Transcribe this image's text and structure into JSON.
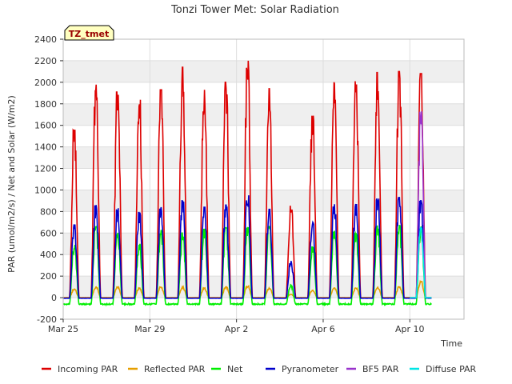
{
  "chart_data": {
    "type": "line",
    "title": "Tonzi Tower Met: Solar Radiation",
    "xlabel": "Time",
    "ylabel": "PAR (umol/m2/s) / Net and Solar (W/m2)",
    "site_label": "TZ_tmet",
    "ylim": [
      -200,
      2400
    ],
    "yticks": [
      -200,
      0,
      200,
      400,
      600,
      800,
      1000,
      1200,
      1400,
      1600,
      1800,
      2000,
      2200,
      2400
    ],
    "xlim_days": [
      0,
      18.5
    ],
    "xticks": [
      {
        "day": 0,
        "label": "Mar 25"
      },
      {
        "day": 4,
        "label": "Mar 29"
      },
      {
        "day": 8,
        "label": "Apr 2"
      },
      {
        "day": 12,
        "label": "Apr 6"
      },
      {
        "day": 16,
        "label": "Apr 10"
      }
    ],
    "day_labels": [
      "Mar 25",
      "Mar 26",
      "Mar 27",
      "Mar 28",
      "Mar 29",
      "Mar 30",
      "Mar 31",
      "Apr 1",
      "Apr 2",
      "Apr 3",
      "Apr 4",
      "Apr 5",
      "Apr 6",
      "Apr 7",
      "Apr 8",
      "Apr 9",
      "Apr 10",
      "Apr 11"
    ],
    "series": [
      {
        "name": "Incoming PAR",
        "color": "#dd0000",
        "daily_peak": [
          1560,
          2040,
          1910,
          1860,
          1930,
          2140,
          1930,
          2000,
          2200,
          1940,
          870,
          1690,
          2000,
          2010,
          2090,
          2100,
          2080,
          null
        ],
        "night_value": 0
      },
      {
        "name": "Reflected PAR",
        "color": "#e69f00",
        "daily_peak": [
          80,
          100,
          100,
          90,
          100,
          100,
          90,
          100,
          110,
          90,
          30,
          70,
          90,
          90,
          100,
          100,
          150,
          null
        ],
        "night_value": 0
      },
      {
        "name": "Net",
        "color": "#00ee00",
        "daily_peak": [
          490,
          660,
          620,
          500,
          630,
          600,
          640,
          650,
          650,
          660,
          120,
          470,
          620,
          600,
          670,
          670,
          660,
          null
        ],
        "night_value": -60
      },
      {
        "name": "Pyranometer",
        "color": "#0000cc",
        "daily_peak": [
          680,
          860,
          830,
          790,
          840,
          900,
          840,
          860,
          950,
          820,
          340,
          700,
          880,
          870,
          920,
          930,
          900,
          null
        ],
        "night_value": -5
      },
      {
        "name": "BF5 PAR",
        "color": "#9933cc",
        "daily_peak": [
          null,
          null,
          null,
          null,
          null,
          null,
          null,
          null,
          null,
          null,
          null,
          null,
          null,
          null,
          null,
          null,
          1730,
          null
        ],
        "night_value": 0
      },
      {
        "name": "Diffuse PAR",
        "color": "#00e5e5",
        "daily_peak": [
          null,
          null,
          null,
          null,
          null,
          null,
          null,
          null,
          null,
          null,
          null,
          null,
          null,
          null,
          null,
          null,
          650,
          null
        ],
        "night_value": 0
      }
    ],
    "grid": true,
    "legend_position": "bottom"
  }
}
